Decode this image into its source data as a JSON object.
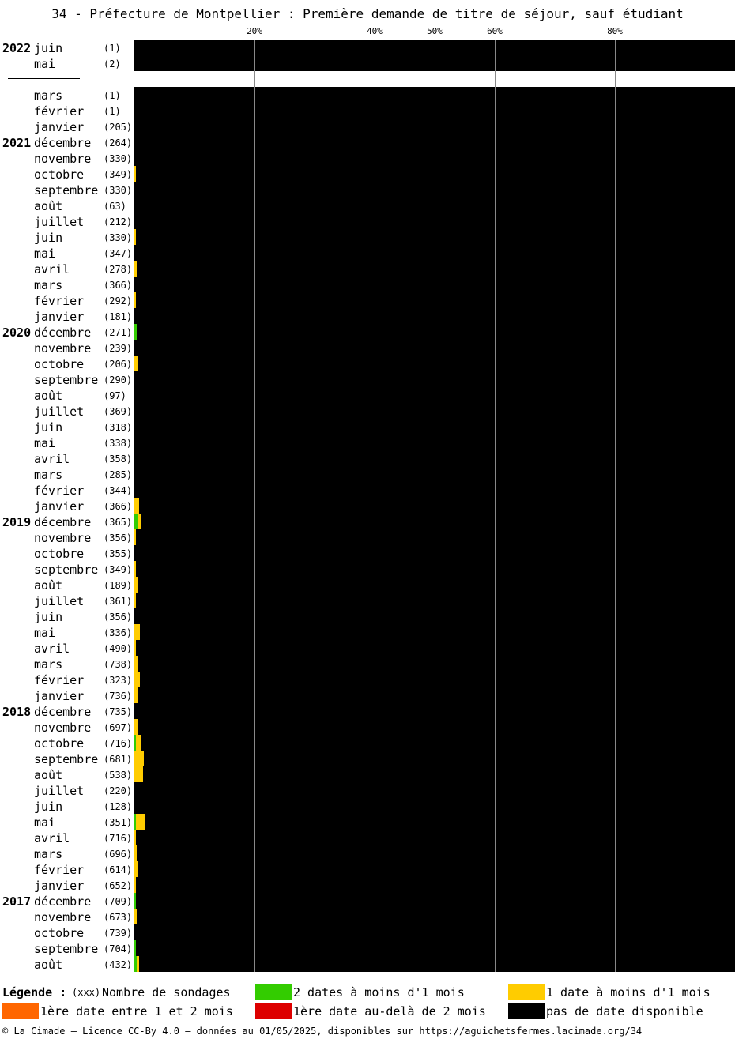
{
  "title": "34 - Préfecture de Montpellier : Première demande de titre de séjour, sauf étudiant",
  "colors": {
    "green": "#33cc00",
    "yellow": "#ffcc00",
    "orange": "#ff6600",
    "red": "#dd0000",
    "black": "#000000"
  },
  "chart_data": {
    "type": "bar",
    "orientation": "horizontal-stacked",
    "x_ticks": [
      "20%",
      "40%",
      "50%",
      "60%",
      "80%"
    ],
    "x_tick_values": [
      20,
      40,
      50,
      60,
      80
    ],
    "xlim": [
      0,
      100
    ],
    "grid": true,
    "series_order": [
      "green",
      "yellow",
      "orange",
      "red",
      "black"
    ],
    "groups": [
      {
        "rows": [
          {
            "year": "2022",
            "month": "juin",
            "count": "(1)",
            "green": 0,
            "yellow": 0,
            "black": 100
          },
          {
            "year": "",
            "month": "mai",
            "count": "(2)",
            "green": 0,
            "yellow": 0,
            "black": 100
          }
        ]
      },
      {
        "rows": [
          {
            "year": "",
            "month": "mars",
            "count": "(1)",
            "green": 0,
            "yellow": 0,
            "black": 100
          },
          {
            "year": "",
            "month": "février",
            "count": "(1)",
            "green": 0,
            "yellow": 0,
            "black": 100
          },
          {
            "year": "",
            "month": "janvier",
            "count": "(205)",
            "green": 0,
            "yellow": 0,
            "black": 100
          },
          {
            "year": "2021",
            "month": "décembre",
            "count": "(264)",
            "green": 0,
            "yellow": 0,
            "black": 100
          },
          {
            "year": "",
            "month": "novembre",
            "count": "(330)",
            "green": 0,
            "yellow": 0,
            "black": 100
          },
          {
            "year": "",
            "month": "octobre",
            "count": "(349)",
            "green": 0,
            "yellow": 0.3,
            "black": 99.7
          },
          {
            "year": "",
            "month": "septembre",
            "count": "(330)",
            "green": 0,
            "yellow": 0,
            "black": 100
          },
          {
            "year": "",
            "month": "août",
            "count": "(63)",
            "green": 0,
            "yellow": 0,
            "black": 100
          },
          {
            "year": "",
            "month": "juillet",
            "count": "(212)",
            "green": 0,
            "yellow": 0,
            "black": 100
          },
          {
            "year": "",
            "month": "juin",
            "count": "(330)",
            "green": 0,
            "yellow": 0.3,
            "black": 99.7
          },
          {
            "year": "",
            "month": "mai",
            "count": "(347)",
            "green": 0,
            "yellow": 0,
            "black": 100
          },
          {
            "year": "",
            "month": "avril",
            "count": "(278)",
            "green": 0,
            "yellow": 0.4,
            "black": 99.6
          },
          {
            "year": "",
            "month": "mars",
            "count": "(366)",
            "green": 0,
            "yellow": 0,
            "black": 100
          },
          {
            "year": "",
            "month": "février",
            "count": "(292)",
            "green": 0,
            "yellow": 0.3,
            "black": 99.7
          },
          {
            "year": "",
            "month": "janvier",
            "count": "(181)",
            "green": 0,
            "yellow": 0,
            "black": 100
          },
          {
            "year": "2020",
            "month": "décembre",
            "count": "(271)",
            "green": 0.4,
            "yellow": 0,
            "black": 99.6
          },
          {
            "year": "",
            "month": "novembre",
            "count": "(239)",
            "green": 0,
            "yellow": 0,
            "black": 100
          },
          {
            "year": "",
            "month": "octobre",
            "count": "(206)",
            "green": 0,
            "yellow": 0.5,
            "black": 99.5
          },
          {
            "year": "",
            "month": "septembre",
            "count": "(290)",
            "green": 0,
            "yellow": 0,
            "black": 100
          },
          {
            "year": "",
            "month": "août",
            "count": "(97)",
            "green": 0,
            "yellow": 0,
            "black": 100
          },
          {
            "year": "",
            "month": "juillet",
            "count": "(369)",
            "green": 0,
            "yellow": 0,
            "black": 100
          },
          {
            "year": "",
            "month": "juin",
            "count": "(318)",
            "green": 0,
            "yellow": 0,
            "black": 100
          },
          {
            "year": "",
            "month": "mai",
            "count": "(338)",
            "green": 0,
            "yellow": 0,
            "black": 100
          },
          {
            "year": "",
            "month": "avril",
            "count": "(358)",
            "green": 0,
            "yellow": 0,
            "black": 100
          },
          {
            "year": "",
            "month": "mars",
            "count": "(285)",
            "green": 0,
            "yellow": 0,
            "black": 100
          },
          {
            "year": "",
            "month": "février",
            "count": "(344)",
            "green": 0,
            "yellow": 0,
            "black": 100
          },
          {
            "year": "",
            "month": "janvier",
            "count": "(366)",
            "green": 0,
            "yellow": 0.8,
            "black": 99.2
          },
          {
            "year": "2019",
            "month": "décembre",
            "count": "(365)",
            "green": 0.6,
            "yellow": 0.5,
            "black": 98.9
          },
          {
            "year": "",
            "month": "novembre",
            "count": "(356)",
            "green": 0,
            "yellow": 0.3,
            "black": 99.7
          },
          {
            "year": "",
            "month": "octobre",
            "count": "(355)",
            "green": 0,
            "yellow": 0,
            "black": 100
          },
          {
            "year": "",
            "month": "septembre",
            "count": "(349)",
            "green": 0,
            "yellow": 0.3,
            "black": 99.7
          },
          {
            "year": "",
            "month": "août",
            "count": "(189)",
            "green": 0,
            "yellow": 0.5,
            "black": 99.5
          },
          {
            "year": "",
            "month": "juillet",
            "count": "(361)",
            "green": 0,
            "yellow": 0.3,
            "black": 99.7
          },
          {
            "year": "",
            "month": "juin",
            "count": "(356)",
            "green": 0,
            "yellow": 0,
            "black": 100
          },
          {
            "year": "",
            "month": "mai",
            "count": "(336)",
            "green": 0,
            "yellow": 0.9,
            "black": 99.1
          },
          {
            "year": "",
            "month": "avril",
            "count": "(490)",
            "green": 0,
            "yellow": 0.3,
            "black": 99.7
          },
          {
            "year": "",
            "month": "mars",
            "count": "(738)",
            "green": 0,
            "yellow": 0.5,
            "black": 99.5
          },
          {
            "year": "",
            "month": "février",
            "count": "(323)",
            "green": 0,
            "yellow": 0.9,
            "black": 99.1
          },
          {
            "year": "",
            "month": "janvier",
            "count": "(736)",
            "green": 0,
            "yellow": 0.6,
            "black": 99.4
          },
          {
            "year": "2018",
            "month": "décembre",
            "count": "(735)",
            "green": 0,
            "yellow": 0,
            "black": 100
          },
          {
            "year": "",
            "month": "novembre",
            "count": "(697)",
            "green": 0,
            "yellow": 0.5,
            "black": 99.5
          },
          {
            "year": "",
            "month": "octobre",
            "count": "(716)",
            "green": 0.3,
            "yellow": 0.8,
            "black": 98.9
          },
          {
            "year": "",
            "month": "septembre",
            "count": "(681)",
            "green": 0,
            "yellow": 1.6,
            "black": 98.4
          },
          {
            "year": "",
            "month": "août",
            "count": "(538)",
            "green": 0,
            "yellow": 1.4,
            "black": 98.6
          },
          {
            "year": "",
            "month": "juillet",
            "count": "(220)",
            "green": 0,
            "yellow": 0,
            "black": 100
          },
          {
            "year": "",
            "month": "juin",
            "count": "(128)",
            "green": 0,
            "yellow": 0,
            "black": 100
          },
          {
            "year": "",
            "month": "mai",
            "count": "(351)",
            "green": 0.2,
            "yellow": 1.5,
            "black": 98.3
          },
          {
            "year": "",
            "month": "avril",
            "count": "(716)",
            "green": 0,
            "yellow": 0.2,
            "black": 99.8
          },
          {
            "year": "",
            "month": "mars",
            "count": "(696)",
            "green": 0,
            "yellow": 0.4,
            "black": 99.6
          },
          {
            "year": "",
            "month": "février",
            "count": "(614)",
            "green": 0,
            "yellow": 0.6,
            "black": 99.4
          },
          {
            "year": "",
            "month": "janvier",
            "count": "(652)",
            "green": 0,
            "yellow": 0.2,
            "black": 99.8
          },
          {
            "year": "2017",
            "month": "décembre",
            "count": "(709)",
            "green": 0.2,
            "yellow": 0.1,
            "black": 99.7
          },
          {
            "year": "",
            "month": "novembre",
            "count": "(673)",
            "green": 0,
            "yellow": 0.4,
            "black": 99.6
          },
          {
            "year": "",
            "month": "octobre",
            "count": "(739)",
            "green": 0,
            "yellow": 0,
            "black": 100
          },
          {
            "year": "",
            "month": "septembre",
            "count": "(704)",
            "green": 0.2,
            "yellow": 0,
            "black": 99.8
          },
          {
            "year": "",
            "month": "août",
            "count": "(432)",
            "green": 0.4,
            "yellow": 0.4,
            "black": 99.2
          }
        ]
      }
    ]
  },
  "legend": {
    "heading": "Légende :",
    "count_sample": "(xxx)",
    "count_label": "Nombre de sondages",
    "items": [
      {
        "color": "green",
        "label": "2 dates à moins d'1 mois"
      },
      {
        "color": "yellow",
        "label": "1 date à moins d'1 mois"
      },
      {
        "color": "orange",
        "label": "1ère date entre 1 et 2 mois"
      },
      {
        "color": "red",
        "label": "1ère date au-delà de 2 mois"
      },
      {
        "color": "black",
        "label": "pas de date disponible"
      }
    ]
  },
  "footer": "© La Cimade – Licence CC-By 4.0 – données au 01/05/2025, disponibles sur https://aguichetsfermes.lacimade.org/34"
}
